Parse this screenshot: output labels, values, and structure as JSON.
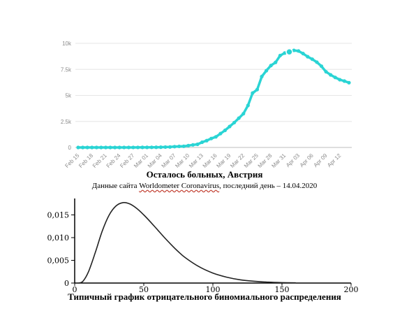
{
  "chart_data": [
    {
      "type": "line",
      "title": "Осталось больных, Австрия",
      "subtitle_prefix": "Данные сайта",
      "subtitle_source": "Worldometer Coronavirus",
      "subtitle_suffix": ", последний день – 14.04.2020",
      "xlabel": "",
      "ylabel": "",
      "ylim": [
        0,
        10000
      ],
      "grid": true,
      "series_color": "#2ad4d4",
      "yticks": [
        {
          "value": 0,
          "label": "0"
        },
        {
          "value": 2500,
          "label": "2.5k"
        },
        {
          "value": 5000,
          "label": "5k"
        },
        {
          "value": 7500,
          "label": "7.5k"
        },
        {
          "value": 10000,
          "label": "10k"
        }
      ],
      "xticks": [
        "Feb 15",
        "Feb 18",
        "Feb 21",
        "Feb 24",
        "Feb 27",
        "Mar 01",
        "Mar 04",
        "Mar 07",
        "Mar 10",
        "Mar 13",
        "Mar 16",
        "Mar 19",
        "Mar 22",
        "Mar 25",
        "Mar 28",
        "Mar 31",
        "Apr 03",
        "Apr 06",
        "Apr 09",
        "Apr 12"
      ],
      "x": [
        "Feb 15",
        "Feb 16",
        "Feb 17",
        "Feb 18",
        "Feb 19",
        "Feb 20",
        "Feb 21",
        "Feb 22",
        "Feb 23",
        "Feb 24",
        "Feb 25",
        "Feb 26",
        "Feb 27",
        "Feb 28",
        "Feb 29",
        "Mar 01",
        "Mar 02",
        "Mar 03",
        "Mar 04",
        "Mar 05",
        "Mar 06",
        "Mar 07",
        "Mar 08",
        "Mar 09",
        "Mar 10",
        "Mar 11",
        "Mar 12",
        "Mar 13",
        "Mar 14",
        "Mar 15",
        "Mar 16",
        "Mar 17",
        "Mar 18",
        "Mar 19",
        "Mar 20",
        "Mar 21",
        "Mar 22",
        "Mar 23",
        "Mar 24",
        "Mar 25",
        "Mar 26",
        "Mar 27",
        "Mar 28",
        "Mar 29",
        "Mar 30",
        "Mar 31",
        "Apr 01",
        "Apr 02",
        "Apr 03",
        "Apr 04",
        "Apr 05",
        "Apr 06",
        "Apr 07",
        "Apr 08",
        "Apr 09",
        "Apr 10",
        "Apr 11",
        "Apr 12",
        "Apr 13",
        "Apr 14"
      ],
      "values": [
        0,
        0,
        0,
        0,
        0,
        0,
        0,
        0,
        0,
        0,
        2,
        2,
        3,
        5,
        9,
        10,
        14,
        18,
        24,
        37,
        47,
        79,
        104,
        112,
        182,
        246,
        302,
        504,
        655,
        860,
        1018,
        1332,
        1646,
        2013,
        2388,
        2814,
        3244,
        4034,
        5224,
        5560,
        6812,
        7374,
        7870,
        8171,
        8828,
        9068,
        9178,
        9325,
        9265,
        9016,
        8716,
        8479,
        8191,
        7805,
        7270,
        6972,
        6724,
        6507,
        6377,
        6222
      ]
    },
    {
      "type": "line",
      "title": "Типичный график отрицательного биномиального распределения",
      "xlabel": "",
      "ylabel": "",
      "xlim": [
        0,
        200
      ],
      "ylim": [
        0,
        0.018
      ],
      "grid": false,
      "xticks": [
        {
          "value": 0,
          "label": "0"
        },
        {
          "value": 50,
          "label": "50"
        },
        {
          "value": 100,
          "label": "100"
        },
        {
          "value": 150,
          "label": "150"
        },
        {
          "value": 200,
          "label": "200"
        }
      ],
      "yticks": [
        {
          "value": 0,
          "label": "0"
        },
        {
          "value": 0.005,
          "label": "0,005"
        },
        {
          "value": 0.01,
          "label": "0,010"
        },
        {
          "value": 0.015,
          "label": "0,015"
        }
      ],
      "x": [
        3,
        6,
        10,
        15,
        20,
        25,
        30,
        35,
        40,
        45,
        50,
        55,
        60,
        65,
        70,
        75,
        80,
        90,
        100,
        110,
        120,
        130,
        140,
        150,
        160
      ],
      "values": [
        0,
        0.0004,
        0.0025,
        0.0068,
        0.0115,
        0.015,
        0.017,
        0.0177,
        0.0174,
        0.0164,
        0.015,
        0.0134,
        0.0117,
        0.01,
        0.0084,
        0.0069,
        0.0056,
        0.0036,
        0.0022,
        0.0013,
        0.0007,
        0.0004,
        0.0002,
        0.0001,
        5e-05
      ]
    }
  ]
}
